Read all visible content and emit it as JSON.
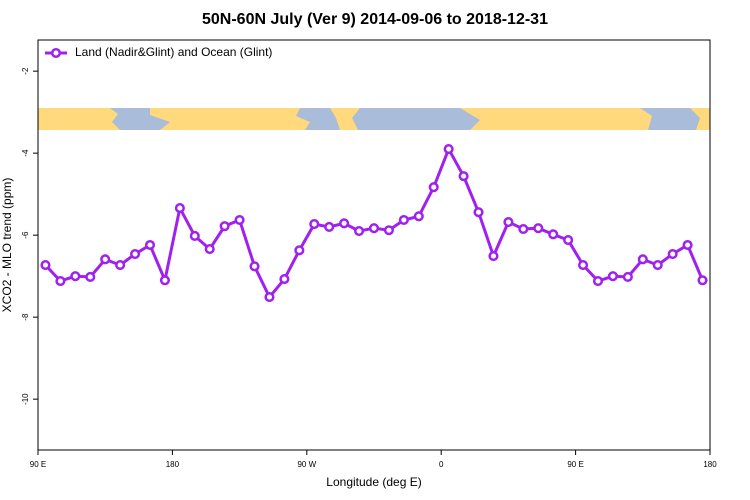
{
  "chart_data": {
    "type": "line",
    "title": "50N-60N July (Ver 9)   2014-09-06 to 2018-12-31",
    "x_label": "Longitude (deg E)",
    "y_label": "XCO2 - MLO trend (ppm)",
    "x": [
      95,
      105,
      115,
      125,
      135,
      145,
      155,
      165,
      175,
      185,
      195,
      205,
      215,
      225,
      235,
      245,
      255,
      265,
      275,
      285,
      295,
      305,
      315,
      325,
      335,
      345,
      355,
      365,
      375,
      385,
      395,
      405,
      415,
      425,
      435,
      445,
      455,
      465,
      475,
      485,
      495,
      505,
      515,
      525,
      535
    ],
    "series": [
      {
        "name": "Land (Nadir&Glint) and Ocean (Glint)",
        "color": "#a020f0",
        "values": [
          -6.73,
          -7.12,
          -7.0,
          -7.02,
          -6.59,
          -6.73,
          -6.46,
          -6.24,
          -7.1,
          -5.34,
          -6.02,
          -6.34,
          -5.78,
          -5.63,
          -6.76,
          -7.51,
          -7.07,
          -6.37,
          -5.73,
          -5.8,
          -5.71,
          -5.9,
          -5.83,
          -5.88,
          -5.63,
          -5.54,
          -4.83,
          -3.9,
          -4.56,
          -5.44,
          -6.51,
          -5.68,
          -5.85,
          -5.83,
          -5.98,
          -6.12,
          -6.73,
          -7.12,
          -7.0,
          -7.02,
          -6.59,
          -6.73,
          -6.46,
          -6.24,
          -7.1
        ]
      }
    ],
    "xlim": [
      90,
      540
    ],
    "xticks": [
      {
        "value": 90,
        "label": "90 E"
      },
      180,
      {
        "value": 270,
        "label": "90 W"
      },
      {
        "value": 360,
        "label": "0"
      },
      {
        "value": 450,
        "label": "90 E"
      },
      {
        "value": 540,
        "label": "180"
      }
    ],
    "ylim": [
      -11.24,
      -1.24
    ],
    "yticks": [
      -2,
      -4,
      -6,
      -8,
      -10
    ],
    "legend_position": "top-left"
  }
}
